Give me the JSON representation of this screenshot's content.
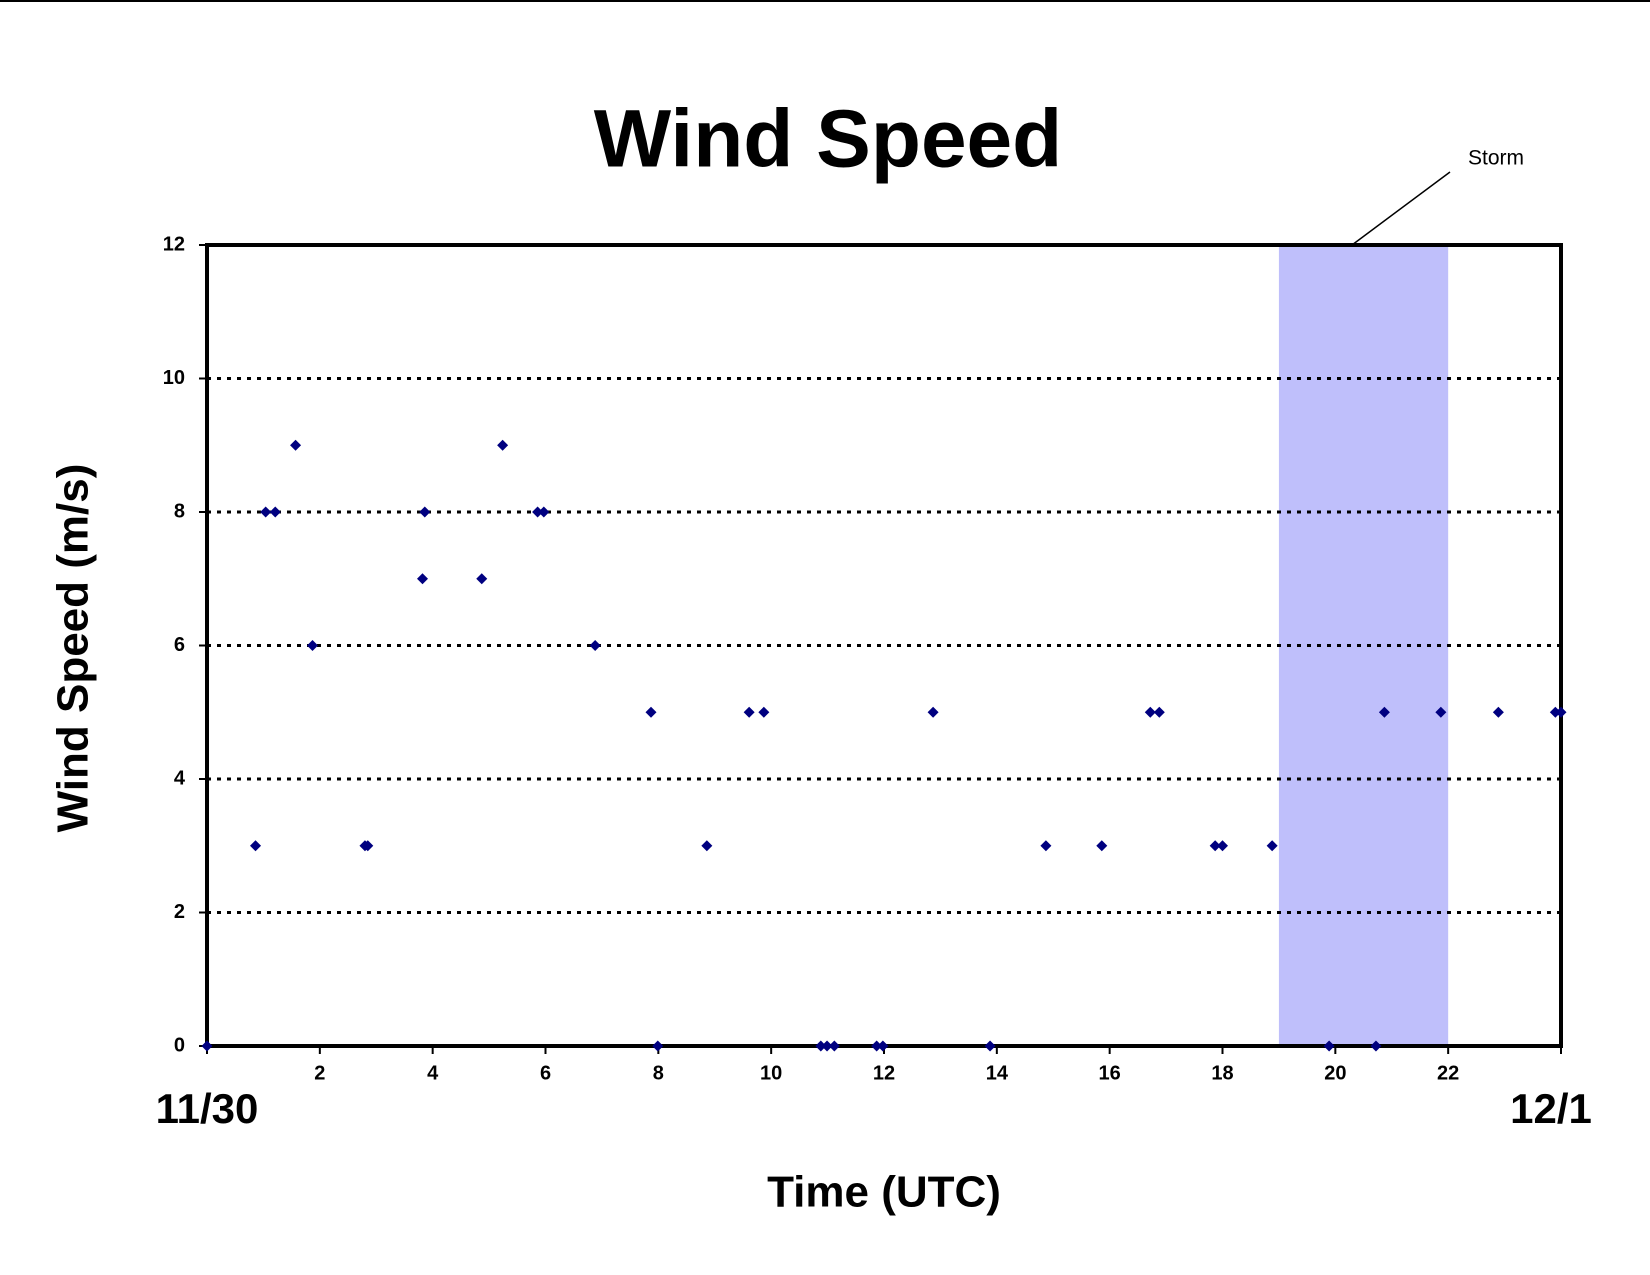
{
  "chart_data": {
    "type": "scatter",
    "title": "Wind Speed",
    "x_label": "Time (UTC)",
    "y_label": "Wind Speed (m/s)",
    "series": [
      {
        "name": "Wind Speed",
        "color": "#000080",
        "x": [
          0,
          0.86,
          1.04,
          1.21,
          1.57,
          1.87,
          2.8,
          2.85,
          3.82,
          3.86,
          4.87,
          5.24,
          5.86,
          5.97,
          6.88,
          7.87,
          7.99,
          8.86,
          9.61,
          9.87,
          10.88,
          10.99,
          11.12,
          11.87,
          11.98,
          12.87,
          13.88,
          14.87,
          15.86,
          16.72,
          16.88,
          17.87,
          18.0,
          18.88,
          19.89,
          20.72,
          20.87,
          21.87,
          22.89,
          23.9,
          24
        ],
        "values": [
          0,
          3,
          8,
          8,
          9,
          6,
          3,
          3,
          7,
          8,
          7,
          9,
          8,
          8,
          6,
          5,
          0,
          3,
          5,
          5,
          0,
          0,
          0,
          0,
          0,
          5,
          0,
          3,
          3,
          5,
          5,
          3,
          3,
          3,
          0,
          0,
          5,
          5,
          5,
          5,
          5
        ]
      }
    ],
    "xlim": [
      0,
      24
    ],
    "ylim": [
      0,
      12
    ],
    "xticks": [
      2,
      4,
      6,
      8,
      10,
      12,
      14,
      16,
      18,
      20,
      22
    ],
    "yticks": [
      0,
      2,
      4,
      6,
      8,
      10,
      12
    ],
    "date_labels": [
      {
        "value": 0,
        "label": "11/30"
      },
      {
        "value": 24,
        "label": "12/1"
      }
    ],
    "grid": true,
    "storm": {
      "label": "Storm",
      "start": 19,
      "end": 22,
      "color": "#bfbffb"
    }
  }
}
